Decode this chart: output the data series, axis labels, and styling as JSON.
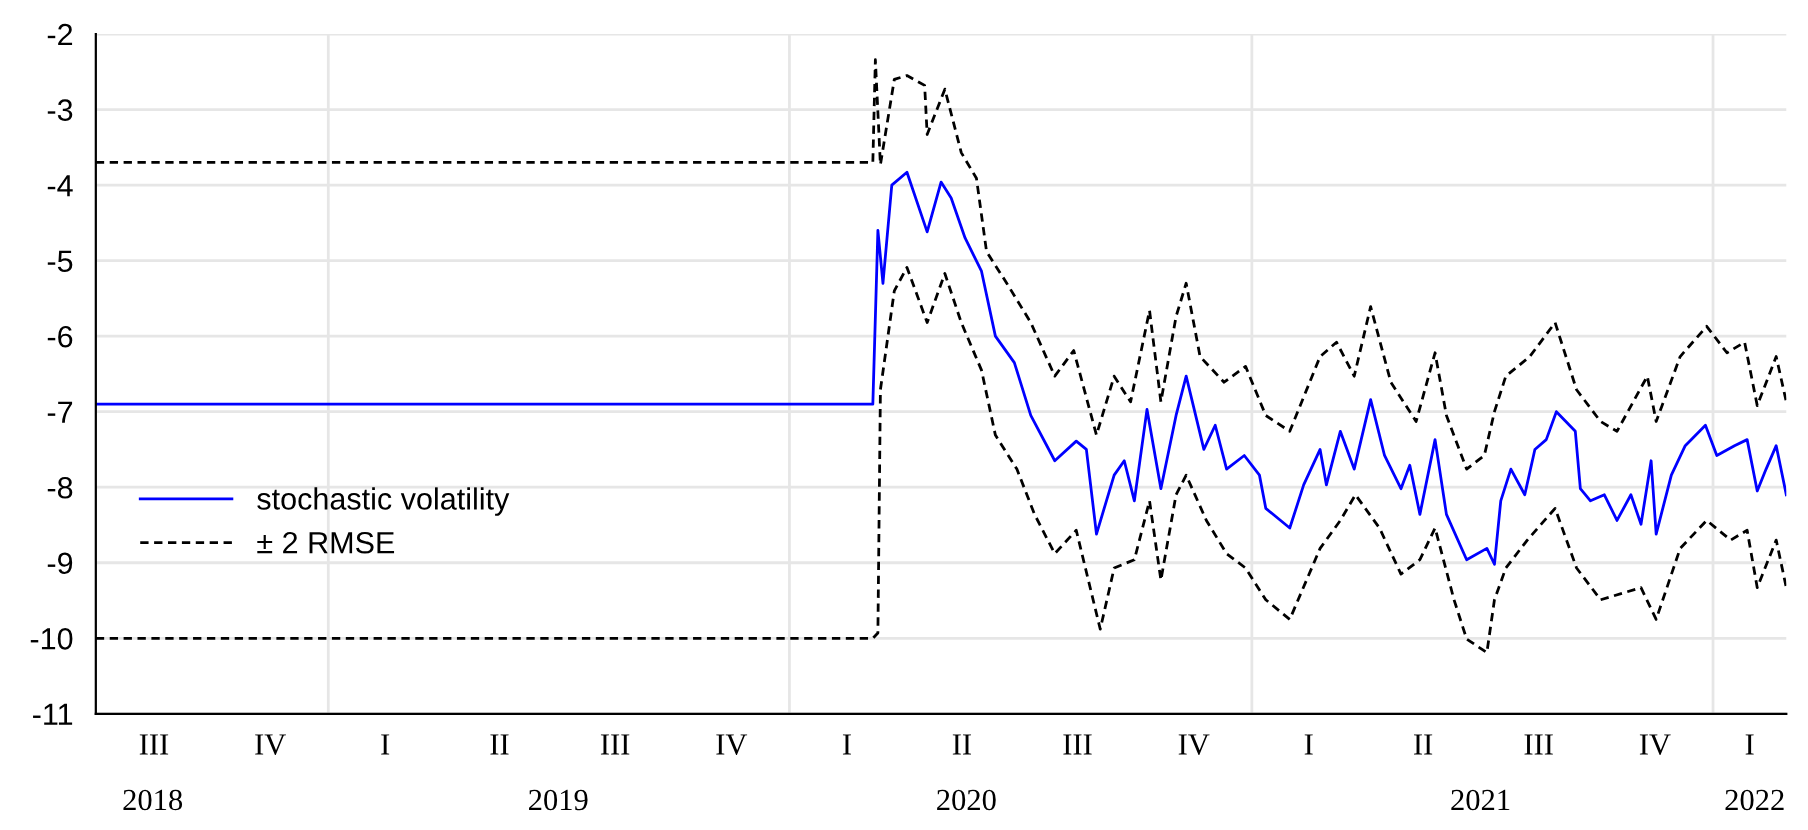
{
  "chart_data": {
    "type": "line",
    "xlim": [
      "2018-07-01",
      "2022-02-28"
    ],
    "xticks": [
      {
        "value": "2018-08-15",
        "label": "2018"
      },
      {
        "value": "2019-07-02",
        "label": "2019"
      },
      {
        "value": "2020-05-20",
        "label": "2020"
      },
      {
        "value": "2021-07-01",
        "label": "2021"
      },
      {
        "value": "2022-02-03",
        "label": "2022"
      },
      {
        "value": "2019-01-01",
        "label": null
      },
      {
        "value": "2020-01-01",
        "label": null
      },
      {
        "value": "2021-01-01",
        "label": null
      },
      {
        "value": "2022-01-01",
        "label": null
      }
    ],
    "annotations": [
      "III",
      "IV",
      "I",
      "II",
      "III",
      "IV",
      "I",
      "II",
      "III",
      "IV",
      "I",
      "II",
      "III",
      "IV",
      "I"
    ],
    "ylim": [
      -11,
      -2
    ],
    "yticks": [
      -11,
      -10,
      -9,
      -8,
      -7,
      -6,
      -5,
      -4,
      -3,
      -2
    ],
    "grid": true,
    "legend": "left",
    "series": [
      {
        "name": "stochastic volatility",
        "color": "#0000ff",
        "line_style": "solid",
        "x": [
          "2018-07-01",
          "2020-03-07",
          "2020-03-11",
          "2020-03-15",
          "2020-03-22",
          "2020-04-03",
          "2020-04-19",
          "2020-04-30",
          "2020-05-08",
          "2020-05-19",
          "2020-06-01",
          "2020-06-12",
          "2020-06-27",
          "2020-07-10",
          "2020-07-29",
          "2020-08-15",
          "2020-08-23",
          "2020-08-31",
          "2020-09-14",
          "2020-09-22",
          "2020-09-30",
          "2020-10-10",
          "2020-10-21",
          "2020-11-02",
          "2020-11-10",
          "2020-11-24",
          "2020-12-03",
          "2020-12-12",
          "2020-12-26",
          "2021-01-07",
          "2021-01-12",
          "2021-01-31",
          "2021-02-11",
          "2021-02-24",
          "2021-03-01",
          "2021-03-12",
          "2021-03-23",
          "2021-04-05",
          "2021-04-16",
          "2021-04-29",
          "2021-05-06",
          "2021-05-14",
          "2021-05-26",
          "2021-06-04",
          "2021-06-20",
          "2021-07-06",
          "2021-07-12",
          "2021-07-17",
          "2021-07-25",
          "2021-08-05",
          "2021-08-13",
          "2021-08-22",
          "2021-08-30",
          "2021-09-14",
          "2021-09-18",
          "2021-09-26",
          "2021-10-07",
          "2021-10-17",
          "2021-10-28",
          "2021-11-05",
          "2021-11-13",
          "2021-11-17",
          "2021-11-29",
          "2021-12-10",
          "2021-12-26",
          "2022-01-04",
          "2022-01-18",
          "2022-01-28",
          "2022-02-05",
          "2022-02-12",
          "2022-02-20",
          "2022-02-28"
        ],
        "values": [
          -6.9,
          -6.9,
          -4.6,
          -5.3,
          -4.0,
          -3.83,
          -4.62,
          -3.96,
          -4.17,
          -4.7,
          -5.14,
          -6.0,
          -6.35,
          -7.05,
          -7.65,
          -7.39,
          -7.5,
          -8.62,
          -7.84,
          -7.65,
          -8.18,
          -6.97,
          -8.02,
          -7.05,
          -6.53,
          -7.5,
          -7.18,
          -7.76,
          -7.58,
          -7.84,
          -8.28,
          -8.54,
          -7.97,
          -7.5,
          -7.97,
          -7.26,
          -7.76,
          -6.84,
          -7.58,
          -8.02,
          -7.71,
          -8.36,
          -7.37,
          -8.36,
          -8.96,
          -8.81,
          -9.02,
          -8.18,
          -7.76,
          -8.1,
          -7.5,
          -7.37,
          -7.0,
          -7.26,
          -8.02,
          -8.18,
          -8.1,
          -8.44,
          -8.1,
          -8.49,
          -7.65,
          -8.62,
          -7.84,
          -7.45,
          -7.18,
          -7.58,
          -7.45,
          -7.37,
          -8.05,
          -7.76,
          -7.45,
          -8.1
        ]
      },
      {
        "name": "± 2 RMSE",
        "color": "#000000",
        "line_style": "dashed",
        "x": [
          "2018-07-01",
          "2020-03-07",
          "2020-03-09",
          "2020-03-13",
          "2020-03-24",
          "2020-04-03",
          "2020-04-17",
          "2020-04-19",
          "2020-05-03",
          "2020-05-16",
          "2020-05-28",
          "2020-06-05",
          "2020-06-21",
          "2020-07-10",
          "2020-07-29",
          "2020-08-13",
          "2020-08-31",
          "2020-09-14",
          "2020-09-27",
          "2020-10-12",
          "2020-10-21",
          "2020-11-02",
          "2020-11-10",
          "2020-11-21",
          "2020-12-10",
          "2020-12-27",
          "2021-01-12",
          "2021-01-31",
          "2021-02-24",
          "2021-03-09",
          "2021-03-23",
          "2021-04-05",
          "2021-04-21",
          "2021-05-11",
          "2021-05-26",
          "2021-06-04",
          "2021-06-20",
          "2021-07-04",
          "2021-07-12",
          "2021-07-21",
          "2021-08-09",
          "2021-08-29",
          "2021-09-15",
          "2021-10-04",
          "2021-10-17",
          "2021-11-10",
          "2021-11-17",
          "2021-12-06",
          "2021-12-27",
          "2022-01-12",
          "2022-01-26",
          "2022-02-05",
          "2022-02-20",
          "2022-02-28"
        ],
        "values": [
          -3.7,
          -3.7,
          -2.34,
          -3.73,
          -2.6,
          -2.55,
          -2.68,
          -3.33,
          -2.73,
          -3.57,
          -3.91,
          -4.88,
          -5.3,
          -5.82,
          -6.53,
          -6.19,
          -7.31,
          -6.53,
          -6.87,
          -5.66,
          -6.87,
          -5.74,
          -5.3,
          -6.27,
          -6.61,
          -6.4,
          -7.05,
          -7.26,
          -6.27,
          -6.08,
          -6.53,
          -5.61,
          -6.61,
          -7.13,
          -6.22,
          -7.05,
          -7.76,
          -7.58,
          -7.0,
          -6.53,
          -6.27,
          -5.82,
          -6.71,
          -7.13,
          -7.26,
          -6.53,
          -7.13,
          -6.27,
          -5.87,
          -6.22,
          -6.08,
          -6.92,
          -6.27,
          -6.87
        ]
      },
      {
        "color": "#000000",
        "line_style": "dashed",
        "x": [
          "2018-07-01",
          "2020-03-07",
          "2020-03-11",
          "2020-03-13",
          "2020-03-24",
          "2020-04-03",
          "2020-04-19",
          "2020-05-03",
          "2020-05-16",
          "2020-06-01",
          "2020-06-12",
          "2020-06-29",
          "2020-07-13",
          "2020-07-29",
          "2020-08-15",
          "2020-09-03",
          "2020-09-14",
          "2020-09-30",
          "2020-10-12",
          "2020-10-21",
          "2020-11-02",
          "2020-11-10",
          "2020-11-26",
          "2020-12-12",
          "2020-12-27",
          "2021-01-12",
          "2021-01-31",
          "2021-02-24",
          "2021-03-12",
          "2021-03-24",
          "2021-04-12",
          "2021-04-29",
          "2021-05-14",
          "2021-05-26",
          "2021-06-10",
          "2021-06-20",
          "2021-07-06",
          "2021-07-12",
          "2021-07-21",
          "2021-08-07",
          "2021-08-29",
          "2021-09-15",
          "2021-10-04",
          "2021-11-05",
          "2021-11-17",
          "2021-12-06",
          "2021-12-27",
          "2022-01-15",
          "2022-01-28",
          "2022-02-05",
          "2022-02-20",
          "2022-02-28"
        ],
        "values": [
          -10.0,
          -10.0,
          -9.93,
          -6.71,
          -5.4,
          -5.09,
          -5.82,
          -5.17,
          -5.82,
          -6.45,
          -7.31,
          -7.76,
          -8.36,
          -8.88,
          -8.57,
          -9.88,
          -9.07,
          -8.96,
          -8.18,
          -9.23,
          -8.1,
          -7.84,
          -8.44,
          -8.88,
          -9.07,
          -9.49,
          -9.75,
          -8.81,
          -8.44,
          -8.1,
          -8.54,
          -9.15,
          -8.96,
          -8.54,
          -9.49,
          -10.01,
          -10.19,
          -9.49,
          -9.07,
          -8.7,
          -8.28,
          -9.07,
          -9.49,
          -9.33,
          -9.75,
          -8.81,
          -8.44,
          -8.7,
          -8.57,
          -9.33,
          -8.7,
          -9.33
        ]
      }
    ]
  }
}
